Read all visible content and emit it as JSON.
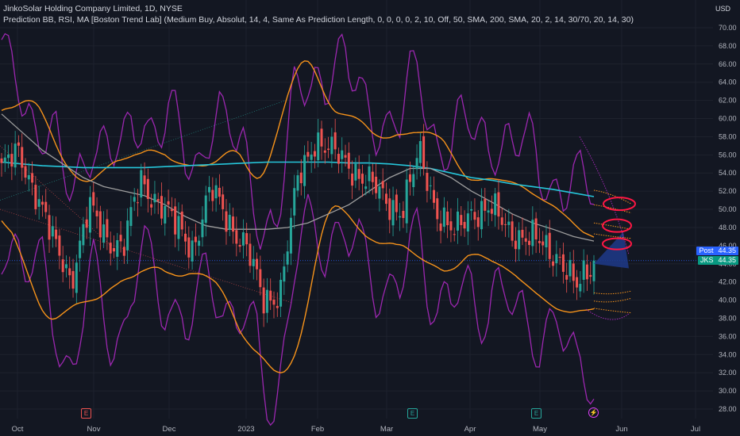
{
  "legend": {
    "title": "JinkoSolar Holding Company Limited, 1D, NYSE",
    "indicator": "Prediction BB, RSI, MA [Boston Trend Lab] (Medium Buy, Absolut, 14, 4, Same As Prediction Length, 0, 0, 0, 0, 2, 10, Off, 50, SMA, 200, SMA, 20, 2, 14, 30/70, 20, 14, 30)"
  },
  "price_axis": {
    "currency": "USD",
    "ticks": [
      "70.00",
      "68.00",
      "66.00",
      "64.00",
      "62.00",
      "60.00",
      "58.00",
      "56.00",
      "54.00",
      "52.00",
      "50.00",
      "48.00",
      "46.00",
      "44.00",
      "42.00",
      "40.00",
      "38.00",
      "36.00",
      "34.00",
      "32.00",
      "30.00",
      "28.00"
    ]
  },
  "time_axis": {
    "ticks": [
      "Oct",
      "Nov",
      "Dec",
      "2023",
      "Feb",
      "Mar",
      "Apr",
      "May",
      "Jun",
      "Jul"
    ]
  },
  "badges": {
    "post_label": "Post",
    "post_value": "44.35",
    "sym_label": "JKS",
    "sym_value": "44.35"
  },
  "events": [
    "E",
    "E",
    "E",
    "⚡"
  ],
  "colors": {
    "background": "#131722",
    "up": "#26a69a",
    "down": "#ef5350",
    "bollinger": "#f7931a",
    "rsi": "#9c27b0",
    "ma50": "#9e9e9e",
    "ma200": "#26c6da",
    "prediction": "#1e3a8a",
    "annotation": "#ff1744",
    "post_badge": "#2962ff",
    "sym_badge": "#089981"
  },
  "chart_data": {
    "type": "candlestick",
    "title": "JinkoSolar Holding Company Limited, 1D, NYSE",
    "ylim": [
      27,
      73
    ],
    "x_ticks": [
      "Oct",
      "Nov",
      "Dec",
      "2023",
      "Feb",
      "Mar",
      "Apr",
      "May",
      "Jun",
      "Jul"
    ],
    "last_price": 44.35,
    "close_series": {
      "x": [
        "Sep 27",
        "Oct 3",
        "Oct 10",
        "Oct 17",
        "Oct 24",
        "Oct 31",
        "Nov 7",
        "Nov 14",
        "Nov 21",
        "Nov 28",
        "Dec 5",
        "Dec 12",
        "Dec 19",
        "Dec 27",
        "Jan 3",
        "Jan 9",
        "Jan 17",
        "Jan 23",
        "Jan 30",
        "Feb 6",
        "Feb 13",
        "Feb 21",
        "Feb 27",
        "Mar 6",
        "Mar 13",
        "Mar 20",
        "Mar 27",
        "Apr 3",
        "Apr 10",
        "Apr 17",
        "Apr 24",
        "May 1",
        "May 8",
        "May 15",
        "May 19"
      ],
      "values": [
        54.5,
        56,
        52,
        46,
        42.5,
        50,
        47,
        46,
        53,
        51,
        48,
        46,
        52,
        49,
        46,
        40,
        41,
        53,
        58,
        56,
        55,
        53,
        51,
        50,
        56,
        50,
        47,
        50,
        50,
        48,
        47,
        46,
        45,
        41,
        44.35
      ]
    },
    "series": [
      {
        "name": "MA 200",
        "values": [
          55.2,
          55.0,
          54.8,
          54.7,
          54.6,
          54.6,
          54.6,
          54.6,
          54.7,
          54.8,
          54.9,
          55.0,
          55.1,
          55.2,
          55.2,
          55.2,
          55.2,
          55.1,
          55.1,
          55.0,
          54.8,
          54.5,
          54.0,
          53.5,
          53.2,
          52.8,
          52.5,
          52.2,
          51.8,
          51.4
        ]
      },
      {
        "name": "MA 50",
        "values": [
          60.5,
          58.5,
          56.5,
          55.0,
          53.5,
          52.5,
          52.0,
          51.5,
          50.5,
          49.2,
          48.2,
          47.8,
          47.8,
          47.8,
          48.0,
          48.5,
          49.5,
          50.5,
          52.0,
          53.5,
          54.5,
          54.5,
          53.5,
          52.0,
          50.8,
          49.5,
          48.5,
          47.8,
          47.0,
          46.5
        ]
      }
    ],
    "prediction": {
      "from": 44.0,
      "to": [
        43.5,
        47.5
      ]
    }
  }
}
